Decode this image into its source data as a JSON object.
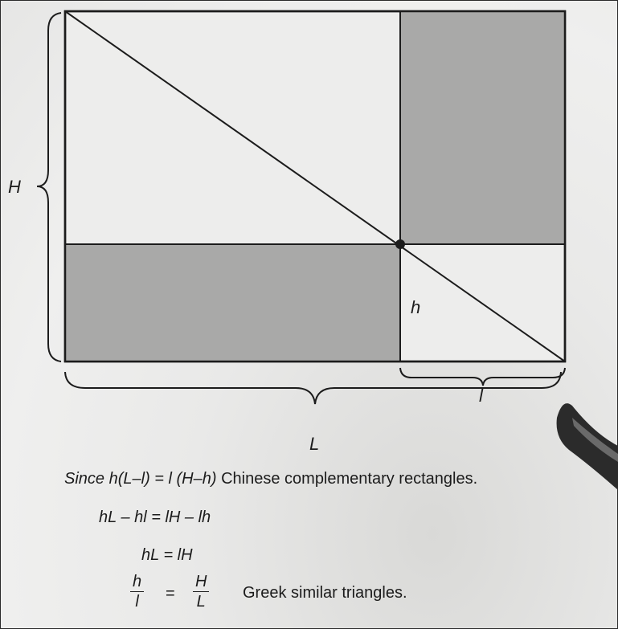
{
  "figure": {
    "labels": {
      "H": "H",
      "L": "L",
      "h": "h",
      "l": "l"
    },
    "colors": {
      "shaded": "#a9a9a8",
      "light": "#ededec",
      "line": "#1c1c1c"
    }
  },
  "equations": {
    "line1_since": "Since",
    "line1_expr": "h(L–l) = l (H–h)",
    "line1_text": "Chinese complementary rectangles.",
    "line2": "hL – hl = lH – lh",
    "line3": "hL = lH",
    "frac_left_num": "h",
    "frac_left_den": "l",
    "equals": "=",
    "frac_right_num": "H",
    "frac_right_den": "L",
    "line4_text": "Greek similar triangles."
  }
}
